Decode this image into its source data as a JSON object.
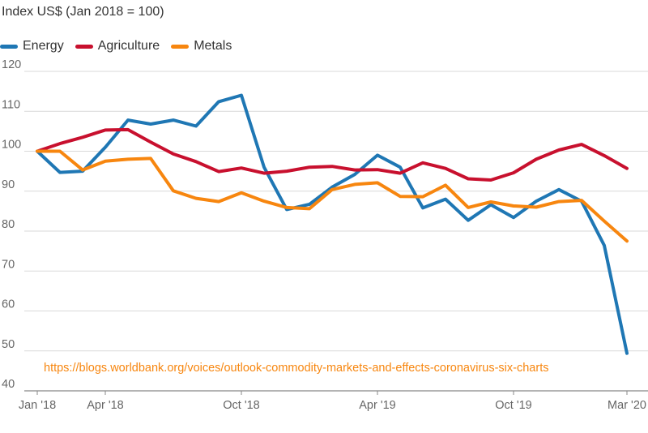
{
  "chart_data": {
    "type": "line",
    "ylabel": "Index US$ (Jan 2018 = 100)",
    "x": [
      "Jan '18",
      "Feb '18",
      "Mar '18",
      "Apr '18",
      "May '18",
      "Jun '18",
      "Jul '18",
      "Aug '18",
      "Sep '18",
      "Oct '18",
      "Nov '18",
      "Dec '18",
      "Jan '19",
      "Feb '19",
      "Mar '19",
      "Apr '19",
      "May '19",
      "Jun '19",
      "Jul '19",
      "Aug '19",
      "Sep '19",
      "Oct '19",
      "Nov '19",
      "Dec '19",
      "Jan '20",
      "Feb '20",
      "Mar '20"
    ],
    "x_tick_labels": [
      "Jan '18",
      "Apr '18",
      "Oct '18",
      "Apr '19",
      "Oct '19",
      "Mar '20"
    ],
    "x_tick_indices": [
      0,
      3,
      9,
      15,
      21,
      26
    ],
    "ylim": [
      40,
      120
    ],
    "yticks": [
      40,
      50,
      60,
      70,
      80,
      90,
      100,
      110,
      120
    ],
    "grid": true,
    "legend_position": "top-left",
    "series": [
      {
        "name": "Energy",
        "color": "#1f77b4",
        "values": [
          100,
          94.7,
          95,
          101,
          107.8,
          106.8,
          107.8,
          106.3,
          112.4,
          114,
          96,
          85.4,
          86.7,
          91,
          94.2,
          99,
          96,
          85.8,
          88,
          82.7,
          86.6,
          83.4,
          87.5,
          90.4,
          87.5,
          76.4,
          49.4
        ]
      },
      {
        "name": "Agriculture",
        "color": "#c8102e",
        "values": [
          100,
          101.9,
          103.5,
          105.3,
          105.4,
          102.3,
          99.3,
          97.4,
          94.9,
          95.8,
          94.5,
          95,
          96,
          96.2,
          95.3,
          95.4,
          94.5,
          97.1,
          95.7,
          93.1,
          92.8,
          94.6,
          98,
          100.3,
          101.7,
          98.9,
          95.7
        ]
      },
      {
        "name": "Metals",
        "color": "#f7860f",
        "values": [
          100,
          100,
          95.3,
          97.5,
          98,
          98.2,
          90.1,
          88.2,
          87.4,
          89.6,
          87.5,
          85.9,
          85.6,
          90.4,
          91.7,
          92.1,
          88.7,
          88.6,
          91.5,
          85.9,
          87.3,
          86.3,
          86,
          87.4,
          87.7,
          82.5,
          77.5
        ]
      }
    ]
  },
  "source_url": "https://blogs.worldbank.org/voices/outlook-commodity-markets-and-effects-coronavirus-six-charts",
  "source_color": "#f7860f"
}
